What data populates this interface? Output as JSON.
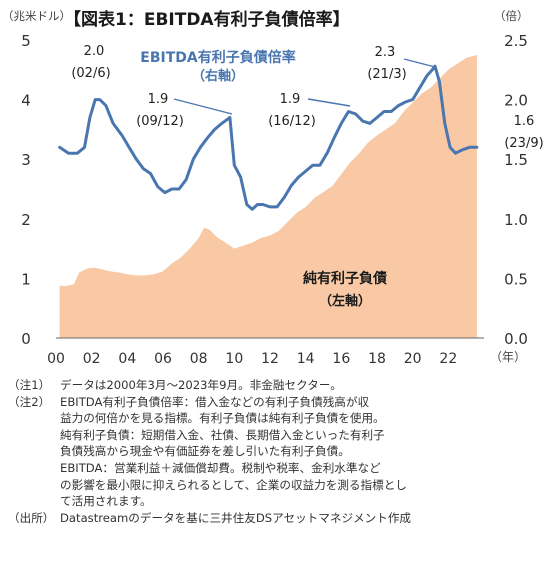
{
  "chart_data": {
    "type": "area+line",
    "title": "【図表1：EBITDA有利子負債倍率】",
    "left_axis": {
      "unit": "（兆米ドル）",
      "range": [
        0,
        5
      ],
      "ticks": [
        "0",
        "1",
        "2",
        "3",
        "4",
        "5"
      ]
    },
    "right_axis": {
      "unit": "（倍）",
      "range": [
        0,
        2.5
      ],
      "ticks": [
        "0.0",
        "0.5",
        "1.0",
        "1.5",
        "2.0",
        "2.5"
      ]
    },
    "x_axis": {
      "unit": "（年）",
      "range": [
        2000,
        2024
      ],
      "ticks": [
        "00",
        "02",
        "04",
        "06",
        "08",
        "10",
        "12",
        "14",
        "16",
        "18",
        "20",
        "22"
      ]
    },
    "series": [
      {
        "name": "EBITDA有利子負債倍率",
        "name_sub": "（右軸）",
        "axis": "right",
        "type": "line",
        "color": "#4a76b0",
        "x": [
          2000.2,
          2000.7,
          2001.2,
          2001.6,
          2001.9,
          2002.2,
          2002.45,
          2002.8,
          2003.2,
          2003.7,
          2004.1,
          2004.5,
          2004.9,
          2005.3,
          2005.7,
          2006.1,
          2006.5,
          2006.9,
          2007.3,
          2007.7,
          2008.1,
          2008.5,
          2008.9,
          2009.3,
          2009.75,
          2010.0,
          2010.35,
          2010.7,
          2011.0,
          2011.3,
          2011.6,
          2012.0,
          2012.4,
          2012.8,
          2013.2,
          2013.6,
          2014.0,
          2014.4,
          2014.8,
          2015.2,
          2015.6,
          2016.0,
          2016.4,
          2016.8,
          2017.2,
          2017.6,
          2018.0,
          2018.4,
          2018.8,
          2019.2,
          2019.6,
          2020.0,
          2020.4,
          2020.8,
          2021.1,
          2021.25,
          2021.5,
          2021.8,
          2022.1,
          2022.4,
          2022.8,
          2023.2,
          2023.6
        ],
        "values": [
          1.6,
          1.55,
          1.55,
          1.6,
          1.85,
          2.0,
          2.0,
          1.95,
          1.8,
          1.7,
          1.6,
          1.5,
          1.42,
          1.38,
          1.27,
          1.22,
          1.25,
          1.25,
          1.33,
          1.5,
          1.6,
          1.68,
          1.75,
          1.8,
          1.85,
          1.45,
          1.35,
          1.12,
          1.08,
          1.12,
          1.12,
          1.1,
          1.1,
          1.18,
          1.28,
          1.35,
          1.4,
          1.45,
          1.45,
          1.55,
          1.68,
          1.8,
          1.9,
          1.88,
          1.82,
          1.8,
          1.85,
          1.9,
          1.9,
          1.95,
          1.98,
          2.0,
          2.1,
          2.2,
          2.25,
          2.28,
          2.15,
          1.8,
          1.6,
          1.55,
          1.58,
          1.6,
          1.6
        ]
      },
      {
        "name": "純有利子負債",
        "name_sub": "（左軸）",
        "axis": "left",
        "type": "area",
        "color": "#f8c9a4",
        "x": [
          2000.2,
          2000.5,
          2001.0,
          2001.3,
          2001.8,
          2002.2,
          2002.6,
          2003.0,
          2003.5,
          2004.0,
          2004.5,
          2005.0,
          2005.5,
          2006.0,
          2006.5,
          2007.0,
          2007.5,
          2008.0,
          2008.3,
          2008.6,
          2009.0,
          2009.5,
          2010.0,
          2010.5,
          2011.0,
          2011.5,
          2012.0,
          2012.5,
          2013.0,
          2013.5,
          2014.0,
          2014.5,
          2015.0,
          2015.5,
          2016.0,
          2016.5,
          2017.0,
          2017.5,
          2018.0,
          2018.5,
          2019.0,
          2019.5,
          2020.0,
          2020.5,
          2021.0,
          2021.5,
          2022.0,
          2022.5,
          2023.0,
          2023.6
        ],
        "values": [
          0.88,
          0.87,
          0.9,
          1.1,
          1.17,
          1.18,
          1.15,
          1.12,
          1.1,
          1.07,
          1.05,
          1.05,
          1.07,
          1.12,
          1.25,
          1.35,
          1.5,
          1.68,
          1.85,
          1.82,
          1.7,
          1.6,
          1.5,
          1.55,
          1.6,
          1.68,
          1.72,
          1.8,
          1.95,
          2.1,
          2.2,
          2.35,
          2.45,
          2.55,
          2.75,
          2.95,
          3.1,
          3.28,
          3.4,
          3.5,
          3.6,
          3.8,
          3.95,
          4.1,
          4.2,
          4.35,
          4.5,
          4.6,
          4.7,
          4.75
        ]
      }
    ],
    "annotations": [
      {
        "value": "2.0",
        "date": "(02/6)"
      },
      {
        "value": "1.9",
        "date": "(09/12)"
      },
      {
        "value": "1.9",
        "date": "(16/12)"
      },
      {
        "value": "2.3",
        "date": "(21/3)"
      },
      {
        "value": "1.6",
        "date": "(23/9)"
      }
    ]
  },
  "notes": [
    {
      "tag": "（注1）",
      "lines": [
        "データは2000年3月～2023年9月。非金融セクター。"
      ]
    },
    {
      "tag": "（注2）",
      "lines": [
        "EBITDA有利子負債倍率：借入金などの有利子負債残高が収",
        "益力の何倍かを見る指標。有利子負債は純有利子負債を使用。",
        "純有利子負債：短期借入金、社債、長期借入金といった有利子",
        "負債残高から現金や有価証券を差し引いた有利子負債。",
        "EBITDA：営業利益＋減価償却費。税制や税率、金利水準など",
        "の影響を最小限に抑えられるとして、企業の収益力を測る指標とし",
        "て活用されます。"
      ]
    },
    {
      "tag": "（出所）",
      "lines": [
        "Datastreamのデータを基に三井住友DSアセットマネジメント作成"
      ]
    }
  ]
}
